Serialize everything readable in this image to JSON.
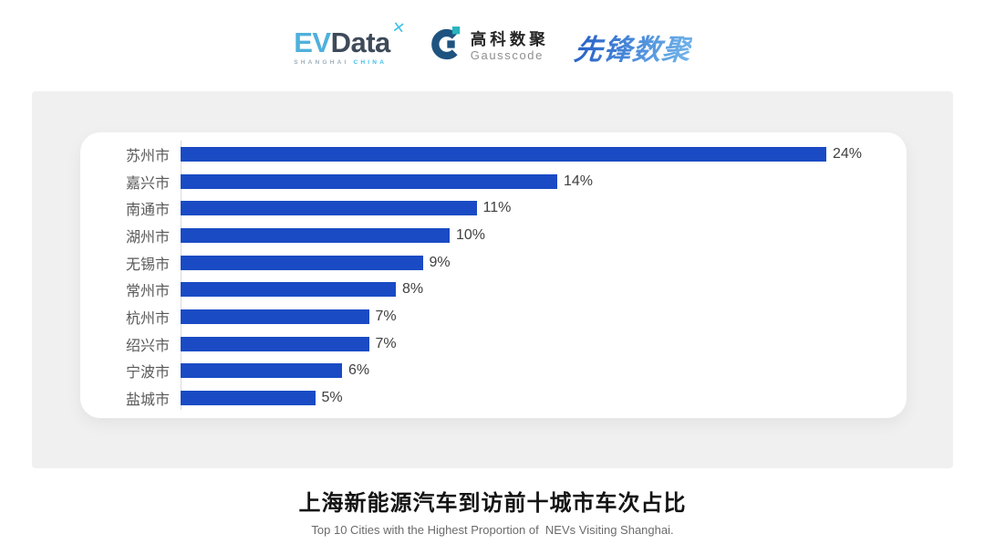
{
  "header": {
    "evdata_logo": {
      "part_blue": "EV",
      "part_dark": "Data",
      "x_mark": "✕",
      "tagline_left": "SHANGHAI",
      "tagline_right": "CHINA"
    },
    "gausscode_logo": {
      "name_cn": "高科数聚",
      "name_en": "Gausscode"
    },
    "pioneer_logo": {
      "text": "先锋数聚"
    }
  },
  "chart_data": {
    "type": "bar",
    "orientation": "horizontal",
    "title": "上海新能源汽车到访前十城市车次占比",
    "subtitle": "Top 10 Cities with the Highest Proportion of  NEVs Visiting Shanghai.",
    "categories": [
      "苏州市",
      "嘉兴市",
      "南通市",
      "湖州市",
      "无锡市",
      "常州市",
      "杭州市",
      "绍兴市",
      "宁波市",
      "盐城市"
    ],
    "values": [
      24,
      14,
      11,
      10,
      9,
      8,
      7,
      7,
      6,
      5
    ],
    "value_labels": [
      "24%",
      "14%",
      "11%",
      "10%",
      "9%",
      "8%",
      "7%",
      "7%",
      "6%",
      "5%"
    ],
    "unit": "%",
    "xlim": [
      0,
      24
    ],
    "grid": false,
    "legend": false,
    "bar_color": "#1A4BC4",
    "label_color": "#595959",
    "value_label_color": "#404040"
  },
  "footer": {
    "title": "上海新能源汽车到访前十城市车次占比",
    "subtitle": "Top 10 Cities with the Highest Proportion of  NEVs Visiting Shanghai."
  },
  "colors": {
    "panel_bg": "#F0F0F0",
    "card_bg": "#FFFFFF",
    "bar_blue": "#1A4BC4",
    "evdata_blue": "#4FB0DC",
    "evdata_dark": "#3E4A59",
    "evdata_cyan": "#3FC0E8",
    "gausscode_navy": "#1E5380",
    "gausscode_teal": "#29B4BE",
    "pioneer_blue_start": "#2A65C8",
    "pioneer_blue_end": "#6FB1E8"
  }
}
